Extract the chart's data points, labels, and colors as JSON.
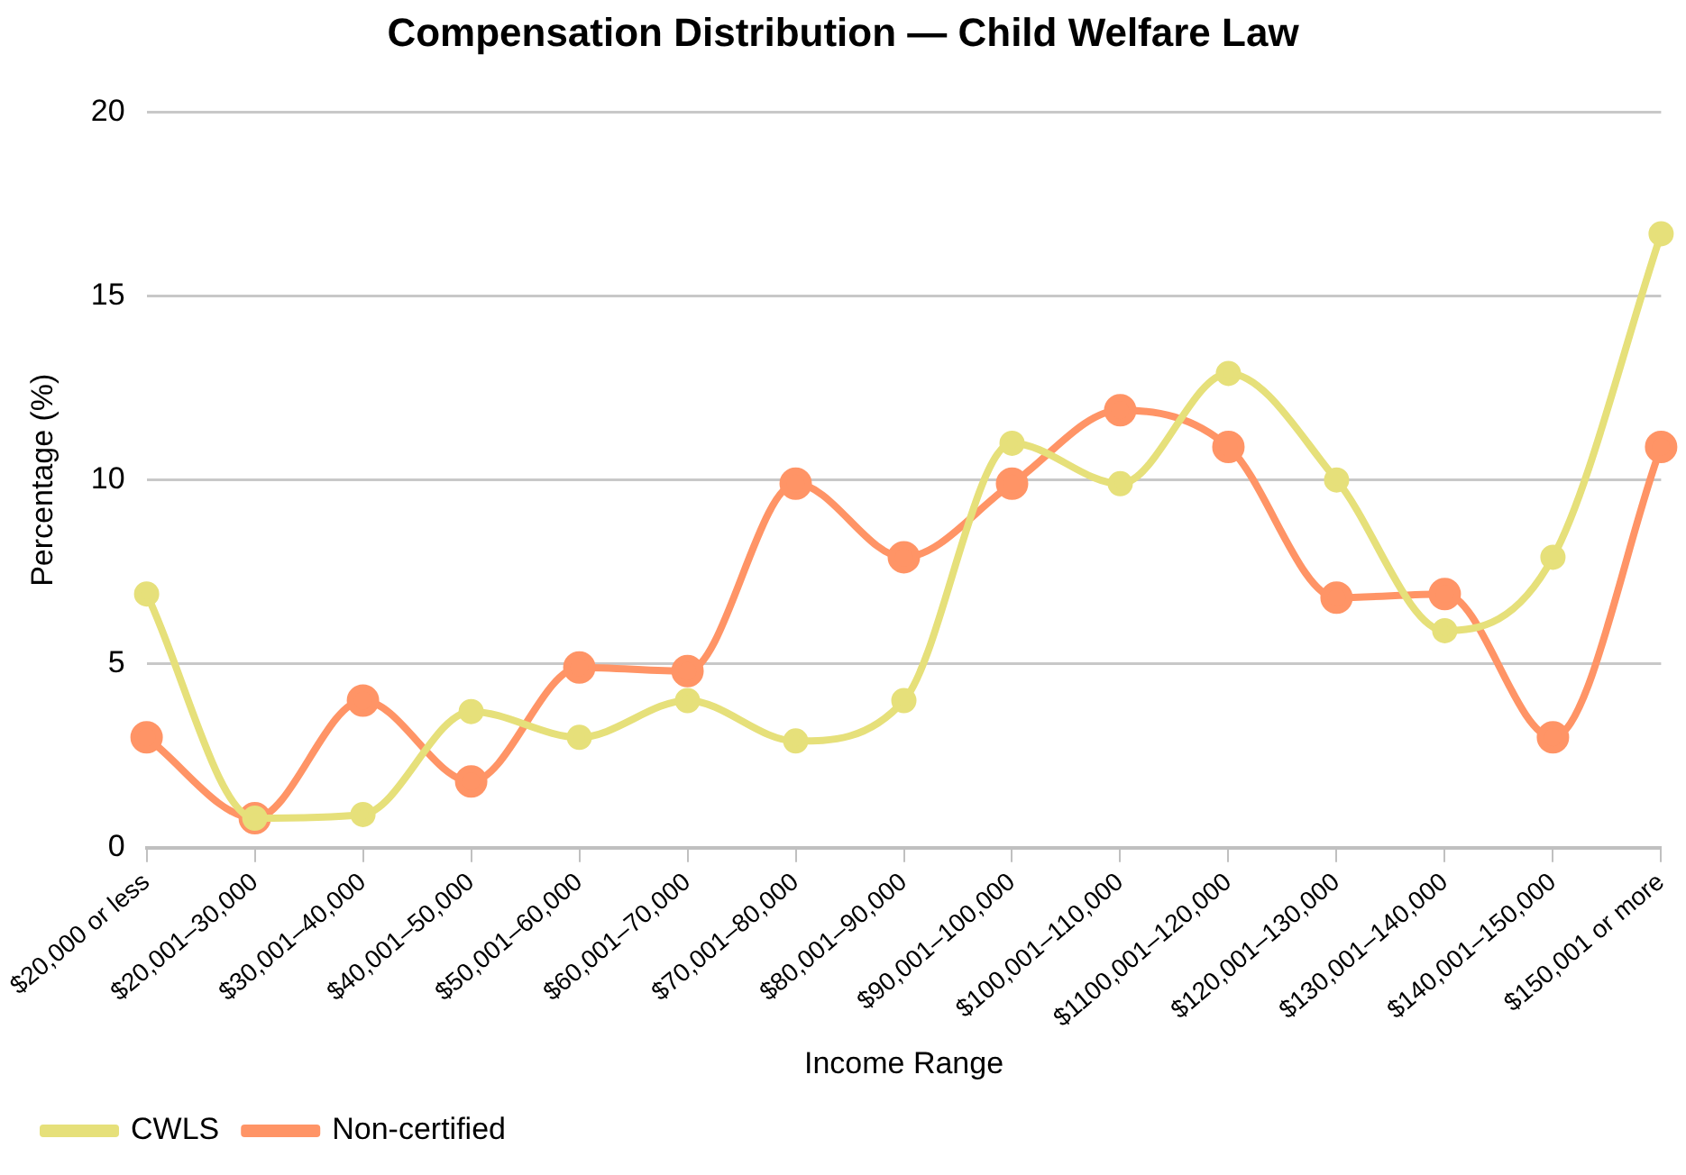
{
  "chart_data": {
    "type": "line",
    "title": "Compensation Distribution — Child Welfare Law",
    "xlabel": "Income Range",
    "ylabel": "Percentage (%)",
    "categories": [
      "$20,000 or less",
      "$20,001–30,000",
      "$30,001–40,000",
      "$40,001–50,000",
      "$50,001–60,000",
      "$60,001–70,000",
      "$70,001–80,000",
      "$80,001–90,000",
      "$90,001–100,000",
      "$100,001–110,000",
      "$1100,001–120,000",
      "$120,001–130,000",
      "$130,001–140,000",
      "$140,001–150,000",
      "$150,001 or more"
    ],
    "series": [
      {
        "name": "CWLS",
        "color": "#e6e07a",
        "values": [
          6.9,
          0.8,
          0.9,
          3.7,
          3.0,
          4.0,
          2.9,
          4.0,
          11.0,
          9.9,
          12.9,
          10.0,
          5.9,
          7.9,
          16.7
        ]
      },
      {
        "name": "Non-certified",
        "color": "#ff9466",
        "values": [
          3.0,
          0.8,
          4.0,
          1.8,
          4.9,
          4.8,
          9.9,
          7.9,
          9.9,
          11.9,
          10.9,
          6.8,
          6.9,
          3.0,
          10.9
        ]
      }
    ],
    "ylim": [
      0,
      20
    ],
    "yticks": [
      0,
      5,
      10,
      15,
      20
    ],
    "grid": "y",
    "legend": "bottom left",
    "marker": "circle",
    "line_style": "solid"
  }
}
